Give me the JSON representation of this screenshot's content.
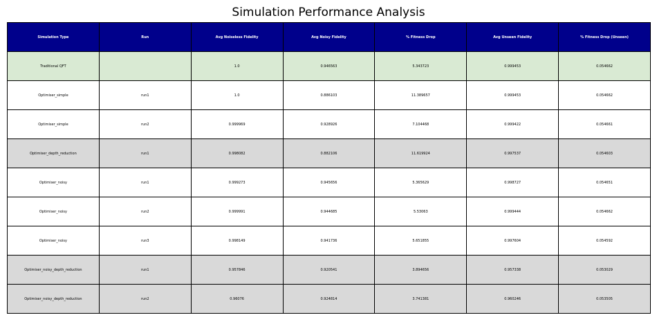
{
  "chart_data": {
    "type": "table",
    "title": "Simulation Performance Analysis",
    "columns": [
      "Simulation Type",
      "Run",
      "Avg Noiseless Fidelity",
      "Avg Noisy Fidelity",
      "% Fitness Drop",
      "Avg Unseen Fidelity",
      "% Fitness Drop (Unseen)"
    ],
    "rows": [
      {
        "style": "green",
        "cells": [
          "Traditional QFT",
          "",
          "1.0",
          "0.946563",
          "5.343723",
          "0.999453",
          "0.054662"
        ]
      },
      {
        "style": "white",
        "cells": [
          "Optimiser_simple",
          "run1",
          "1.0",
          "0.886103",
          "11.389657",
          "0.999453",
          "0.054662"
        ]
      },
      {
        "style": "white",
        "cells": [
          "Optimiser_simple",
          "run2",
          "0.999969",
          "0.928926",
          "7.104468",
          "0.999422",
          "0.054661"
        ]
      },
      {
        "style": "gray",
        "cells": [
          "Optimiser_depth_reduction",
          "run1",
          "0.998082",
          "0.882106",
          "11.619924",
          "0.997537",
          "0.054603"
        ]
      },
      {
        "style": "white",
        "cells": [
          "Optimiser_noisy",
          "run1",
          "0.999273",
          "0.945656",
          "5.365629",
          "0.998727",
          "0.054651"
        ]
      },
      {
        "style": "white",
        "cells": [
          "Optimiser_noisy",
          "run2",
          "0.999991",
          "0.944685",
          "5.53063",
          "0.999444",
          "0.054662"
        ]
      },
      {
        "style": "white",
        "cells": [
          "Optimiser_noisy",
          "run3",
          "0.998149",
          "0.941736",
          "5.651855",
          "0.997604",
          "0.054592"
        ]
      },
      {
        "style": "gray",
        "cells": [
          "Optimiser_noisy_depth_reduction",
          "run1",
          "0.957846",
          "0.920541",
          "3.894656",
          "0.957338",
          "0.053029"
        ]
      },
      {
        "style": "gray",
        "cells": [
          "Optimiser_noisy_depth_reduction",
          "run2",
          "0.96076",
          "0.924814",
          "3.741381",
          "0.960246",
          "0.053505"
        ]
      }
    ],
    "colors": {
      "header_bg": "#00008b",
      "header_text": "#ffffff",
      "highlight_row": "#d9ead3",
      "shaded_row": "#d9d9d9",
      "plain_row": "#ffffff"
    }
  }
}
